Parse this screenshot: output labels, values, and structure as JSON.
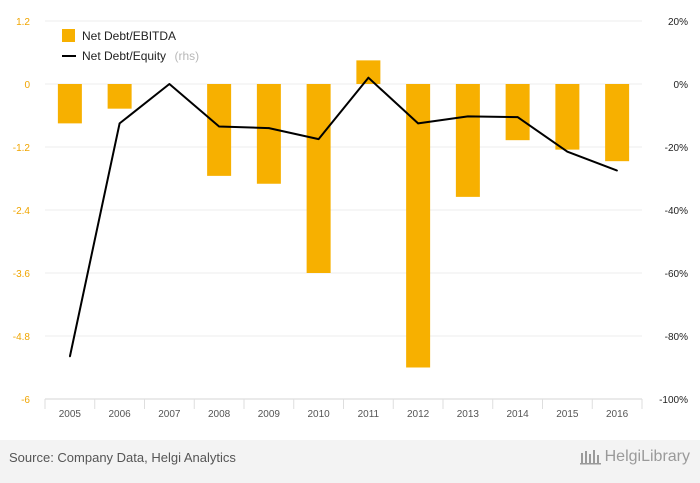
{
  "chart_data": {
    "type": "bar",
    "categories": [
      "2005",
      "2006",
      "2007",
      "2008",
      "2009",
      "2010",
      "2011",
      "2012",
      "2013",
      "2014",
      "2015",
      "2016"
    ],
    "series": [
      {
        "name": "Net Debt/EBITDA",
        "type": "bar",
        "axis": "left",
        "color": "#f7b000",
        "values": [
          -0.75,
          -0.47,
          0,
          -1.75,
          -1.9,
          -3.6,
          0.45,
          -5.4,
          -2.15,
          -1.07,
          -1.25,
          -1.47
        ]
      },
      {
        "name": "Net Debt/Equity",
        "name_note": "(rhs)",
        "type": "line",
        "axis": "right",
        "color": "#000000",
        "values": [
          -86.5,
          -12.5,
          0,
          -13.5,
          -14,
          -17.5,
          2,
          -12.5,
          -10.3,
          -10.5,
          -21.5,
          -27.5
        ]
      }
    ],
    "y_left": {
      "ylim": [
        -6,
        1.2
      ],
      "ticks": [
        "1.2",
        "0",
        "-1.2",
        "-2.4",
        "-3.6",
        "-4.8",
        "-6"
      ],
      "values": [
        1.2,
        0,
        -1.2,
        -2.4,
        -3.6,
        -4.8,
        -6
      ]
    },
    "y_right": {
      "ylim": [
        -100,
        20
      ],
      "ticks": [
        "20%",
        "0%",
        "-20%",
        "-40%",
        "-60%",
        "-80%",
        "-100%"
      ],
      "values": [
        20,
        0,
        -20,
        -40,
        -60,
        -80,
        -100
      ]
    },
    "grid": true,
    "legend_position": "top-left"
  },
  "footer": {
    "source": "Source: Company Data, Helgi Analytics",
    "brand": "HelgiLibrary"
  }
}
